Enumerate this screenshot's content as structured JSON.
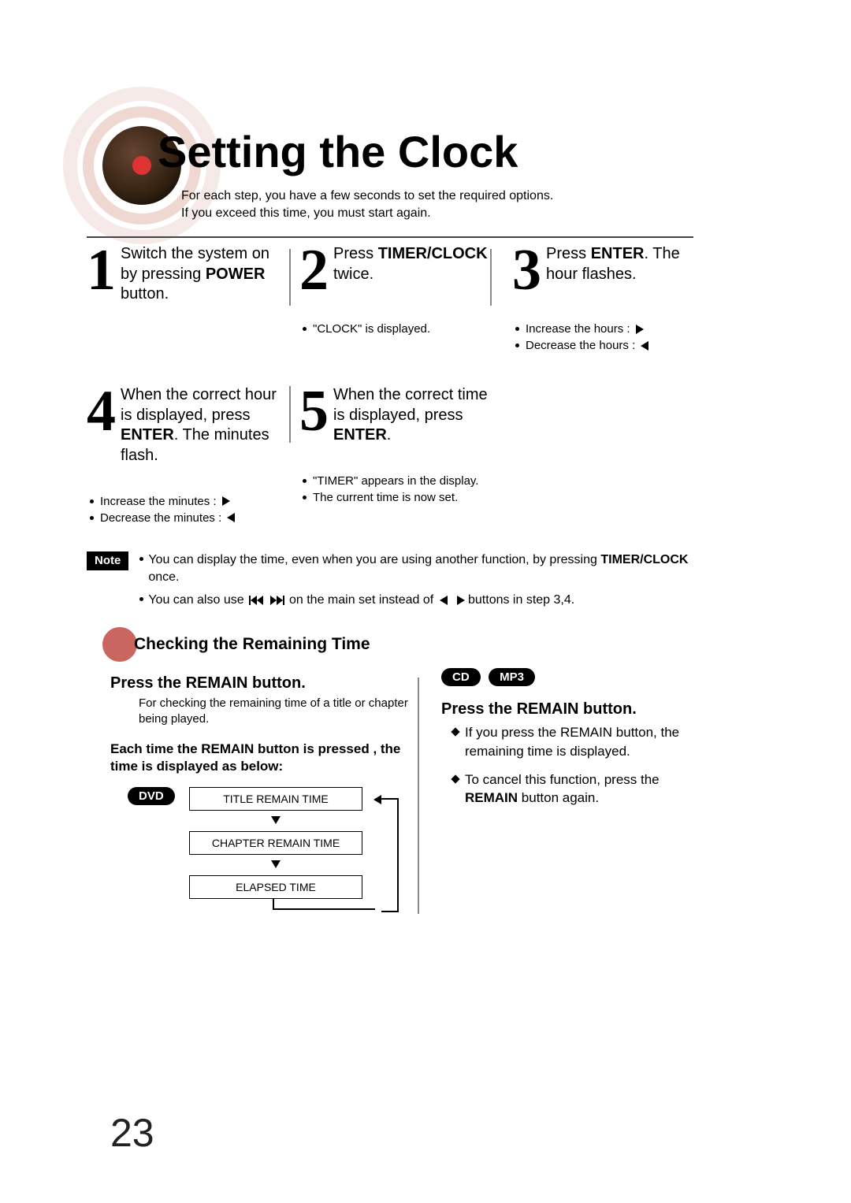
{
  "page_number": "23",
  "title": "Setting the Clock",
  "intro_l1": "For each step, you have a few seconds to set the required options.",
  "intro_l2": "If you exceed this time, you must start again.",
  "step1_text": "Switch the system on by pressing <b>POWER</b> button.",
  "step2_text": "Press <b>TIMER/CLOCK</b> twice.",
  "step2_sub": "\"CLOCK\" is displayed.",
  "step3_text": "Press <b>ENTER</b>. The hour flashes.",
  "step3_sub1": "Increase the hours :",
  "step3_sub2": "Decrease the hours :",
  "step4_text": "When the correct hour is displayed, press <b>ENTER</b>. The minutes flash.",
  "step4_sub1": "Increase the minutes :",
  "step4_sub2": "Decrease the minutes :",
  "step5_text": "When the correct time is displayed, press <b>ENTER</b>.",
  "step5_sub1": "\"TIMER\" appears in the display.",
  "step5_sub2": "The current time is now set.",
  "note_label": "Note",
  "note1_a": "You can display the time, even when you are using another function, by pressing ",
  "note1_b": "TIMER/CLOCK",
  "note1_c": " once.",
  "note2_a": "You can also use ",
  "note2_b": " on the main set instead of ",
  "note2_c": " buttons in step 3,4.",
  "check_title": "Checking the Remaining Time",
  "press_remain": "Press the REMAIN button.",
  "remain_sub": "For checking the remaining time of a title or chapter being played.",
  "each_time": "Each time the REMAIN button is pressed , the time is displayed as below:",
  "pill_dvd": "DVD",
  "pill_cd": "CD",
  "pill_mp3": "MP3",
  "flow_a": "TITLE REMAIN TIME",
  "flow_b": "CHAPTER REMAIN TIME",
  "flow_c": "ELAPSED TIME",
  "right_press": "Press the REMAIN button.",
  "right_b1": "If you press the REMAIN button, the remaining time is displayed.",
  "right_b2_a": "To cancel this function, press the ",
  "right_b2_b": "REMAIN",
  "right_b2_c": " button again.",
  "colors": {
    "accent_circle": "#c8665f"
  }
}
